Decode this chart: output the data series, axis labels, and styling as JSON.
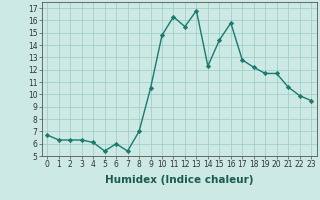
{
  "x": [
    0,
    1,
    2,
    3,
    4,
    5,
    6,
    7,
    8,
    9,
    10,
    11,
    12,
    13,
    14,
    15,
    16,
    17,
    18,
    19,
    20,
    21,
    22,
    23
  ],
  "y": [
    6.7,
    6.3,
    6.3,
    6.3,
    6.1,
    5.4,
    6.0,
    5.4,
    7.0,
    10.5,
    14.8,
    16.3,
    15.5,
    16.8,
    12.3,
    14.4,
    15.8,
    12.8,
    12.2,
    11.7,
    11.7,
    10.6,
    9.9,
    9.5
  ],
  "line_color": "#1a7a6e",
  "marker": "D",
  "marker_size": 2.2,
  "bg_color": "#cce9e4",
  "grid_color": "#99ccc4",
  "xlabel": "Humidex (Indice chaleur)",
  "ylim": [
    5,
    17.5
  ],
  "xlim": [
    -0.5,
    23.5
  ],
  "yticks": [
    5,
    6,
    7,
    8,
    9,
    10,
    11,
    12,
    13,
    14,
    15,
    16,
    17
  ],
  "xticks": [
    0,
    1,
    2,
    3,
    4,
    5,
    6,
    7,
    8,
    9,
    10,
    11,
    12,
    13,
    14,
    15,
    16,
    17,
    18,
    19,
    20,
    21,
    22,
    23
  ],
  "tick_fontsize": 5.5,
  "xlabel_fontsize": 7.5,
  "line_width": 1.0
}
